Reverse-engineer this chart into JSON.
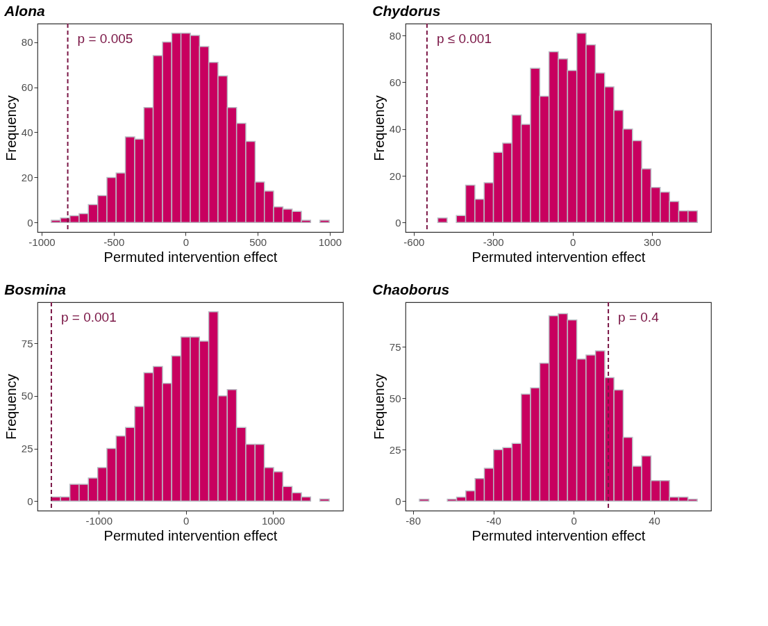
{
  "chart_data": [
    {
      "type": "histogram",
      "title": "Alona",
      "xlabel": "Permuted intervention effect",
      "ylabel": "Frequency",
      "color": "#c8005f",
      "bins": [
        -933,
        -869,
        -804,
        -740,
        -676,
        -611,
        -547,
        -483,
        -419,
        -354,
        -290,
        -226,
        -161,
        -97,
        -33,
        32,
        96,
        160,
        224,
        289,
        353,
        417,
        482,
        546,
        610,
        675,
        739,
        803,
        867,
        932,
        996
      ],
      "values": [
        1,
        2,
        3,
        4,
        8,
        12,
        20,
        22,
        38,
        37,
        51,
        74,
        80,
        84,
        84,
        83,
        78,
        71,
        65,
        51,
        44,
        36,
        18,
        14,
        7,
        6,
        5,
        1,
        0,
        1
      ],
      "xlim": [
        -1029,
        1092
      ],
      "ylim": [
        -4.2,
        88.2
      ],
      "xticks": [
        -1000,
        -500,
        0,
        500,
        1000
      ],
      "yticks": [
        0,
        20,
        40,
        60,
        80
      ],
      "grid": false,
      "ref_lines": [
        {
          "axis": "x",
          "value": -819,
          "color": "#7a1545",
          "line_style": "dashed"
        }
      ],
      "annotations": [
        "p = 0.005"
      ]
    },
    {
      "type": "histogram",
      "title": "Chydorus",
      "xlabel": "Permuted intervention effect",
      "ylabel": "Frequency",
      "color": "#c8005f",
      "bins": [
        -579,
        -544,
        -509,
        -474,
        -439,
        -404,
        -369,
        -334,
        -299,
        -264,
        -229,
        -194,
        -159,
        -124,
        -89,
        -54,
        -19,
        16,
        51,
        86,
        121,
        156,
        191,
        226,
        261,
        296,
        331,
        366,
        401,
        436,
        471
      ],
      "values": [
        0,
        0,
        2,
        0,
        3,
        16,
        10,
        17,
        30,
        34,
        46,
        42,
        66,
        54,
        73,
        70,
        65,
        81,
        76,
        64,
        58,
        48,
        40,
        35,
        23,
        15,
        13,
        9,
        5,
        5
      ],
      "xlim": [
        -631,
        523
      ],
      "ylim": [
        -4.05,
        85.05
      ],
      "xticks": [
        -600,
        -300,
        0,
        300
      ],
      "yticks": [
        0,
        20,
        40,
        60,
        80
      ],
      "grid": false,
      "ref_lines": [
        {
          "axis": "x",
          "value": -550,
          "color": "#7a1545",
          "line_style": "dashed"
        }
      ],
      "annotations": [
        "p ≤ 0.001"
      ]
    },
    {
      "type": "histogram",
      "title": "Bosmina",
      "xlabel": "Permuted intervention effect",
      "ylabel": "Frequency",
      "color": "#c8005f",
      "bins": [
        -1545,
        -1439,
        -1332,
        -1226,
        -1120,
        -1013,
        -907,
        -801,
        -694,
        -588,
        -482,
        -375,
        -269,
        -163,
        -57,
        50,
        156,
        262,
        369,
        475,
        581,
        688,
        794,
        900,
        1007,
        1113,
        1219,
        1326,
        1432,
        1538,
        1645
      ],
      "values": [
        2,
        2,
        8,
        8,
        11,
        16,
        25,
        31,
        35,
        45,
        61,
        64,
        56,
        69,
        78,
        78,
        76,
        90,
        50,
        53,
        35,
        27,
        27,
        16,
        14,
        7,
        4,
        2,
        0,
        1
      ],
      "xlim": [
        -1704,
        1804
      ],
      "ylim": [
        -4.5,
        94.5
      ],
      "xticks": [
        -1000,
        0,
        1000
      ],
      "yticks": [
        0,
        25,
        50,
        75
      ],
      "grid": false,
      "ref_lines": [
        {
          "axis": "x",
          "value": -1545,
          "color": "#7a1545",
          "line_style": "dashed"
        }
      ],
      "annotations": [
        "p = 0.001"
      ]
    },
    {
      "type": "histogram",
      "title": "Chaoborus",
      "xlabel": "Permuted intervention effect",
      "ylabel": "Frequency",
      "color": "#c8005f",
      "bins": [
        -76.8,
        -72.1,
        -67.5,
        -62.9,
        -58.3,
        -53.7,
        -49.1,
        -44.5,
        -39.9,
        -35.3,
        -30.7,
        -26.1,
        -21.5,
        -16.9,
        -12.3,
        -7.7,
        -3.1,
        1.5,
        6.1,
        10.8,
        15.4,
        20.0,
        24.6,
        29.2,
        33.8,
        38.4,
        43.0,
        47.6,
        52.2,
        56.8,
        61.4
      ],
      "values": [
        1,
        0,
        0,
        1,
        2,
        5,
        11,
        16,
        25,
        26,
        28,
        52,
        55,
        67,
        90,
        91,
        88,
        69,
        71,
        73,
        60,
        54,
        31,
        17,
        22,
        10,
        10,
        2,
        2,
        1
      ],
      "xlim": [
        -83.7,
        68.3
      ],
      "ylim": [
        -4.6,
        96.6
      ],
      "xticks": [
        -80,
        -40,
        0,
        40
      ],
      "yticks": [
        0,
        25,
        50,
        75
      ],
      "grid": false,
      "ref_lines": [
        {
          "axis": "x",
          "value": 17.2,
          "color": "#7a1545",
          "line_style": "dashed"
        }
      ],
      "annotations": [
        "p = 0.4"
      ]
    }
  ]
}
